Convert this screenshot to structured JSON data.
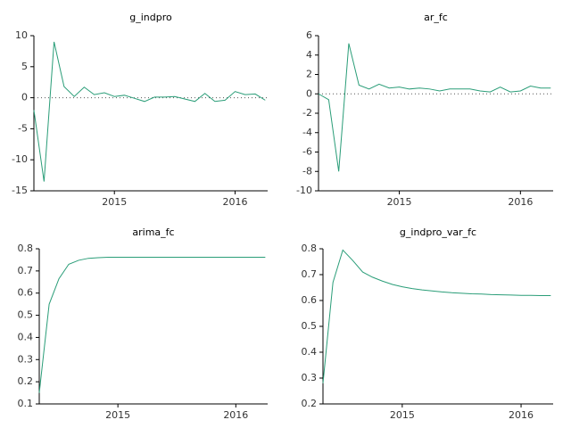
{
  "chart_data": [
    {
      "type": "line",
      "title": "g_indpro",
      "x": [
        2014.333,
        2014.417,
        2014.5,
        2014.583,
        2014.667,
        2014.75,
        2014.833,
        2014.917,
        2015.0,
        2015.083,
        2015.167,
        2015.25,
        2015.333,
        2015.417,
        2015.5,
        2015.583,
        2015.667,
        2015.75,
        2015.833,
        2015.917,
        2016.0,
        2016.083,
        2016.167,
        2016.25
      ],
      "series": [
        {
          "name": "g_indpro",
          "color": "#2a9d78",
          "values": [
            -2,
            -13.5,
            9,
            1.8,
            0.2,
            1.7,
            0.5,
            0.8,
            0.2,
            0.4,
            -0.1,
            -0.6,
            0.1,
            0.1,
            0.2,
            -0.2,
            -0.6,
            0.7,
            -0.6,
            -0.4,
            1.0,
            0.5,
            0.6,
            -0.4
          ]
        }
      ],
      "xlim": [
        2014.333,
        2016.27
      ],
      "xticks": [
        2015,
        2016
      ],
      "ylim": [
        -15,
        10
      ],
      "yticks": [
        -15,
        -10,
        -5,
        0,
        5,
        10
      ],
      "zero_line": true
    },
    {
      "type": "line",
      "title": "ar_fc",
      "x": [
        2014.333,
        2014.417,
        2014.5,
        2014.583,
        2014.667,
        2014.75,
        2014.833,
        2014.917,
        2015.0,
        2015.083,
        2015.167,
        2015.25,
        2015.333,
        2015.417,
        2015.5,
        2015.583,
        2015.667,
        2015.75,
        2015.833,
        2015.917,
        2016.0,
        2016.083,
        2016.167,
        2016.25
      ],
      "series": [
        {
          "name": "ar_fc",
          "color": "#2a9d78",
          "values": [
            0,
            -0.6,
            -8,
            5.2,
            0.9,
            0.5,
            1.0,
            0.6,
            0.7,
            0.5,
            0.6,
            0.5,
            0.3,
            0.5,
            0.5,
            0.5,
            0.3,
            0.2,
            0.7,
            0.2,
            0.3,
            0.8,
            0.6,
            0.6
          ]
        }
      ],
      "xlim": [
        2014.333,
        2016.27
      ],
      "xticks": [
        2015,
        2016
      ],
      "ylim": [
        -10,
        6
      ],
      "yticks": [
        -10,
        -8,
        -6,
        -4,
        -2,
        0,
        2,
        4,
        6
      ],
      "zero_line": true
    },
    {
      "type": "line",
      "title": "arima_fc",
      "x": [
        2014.333,
        2014.417,
        2014.5,
        2014.583,
        2014.667,
        2014.75,
        2014.833,
        2014.917,
        2015.0,
        2015.083,
        2015.167,
        2015.25,
        2015.333,
        2015.417,
        2015.5,
        2015.583,
        2015.667,
        2015.75,
        2015.833,
        2015.917,
        2016.0,
        2016.083,
        2016.167,
        2016.25
      ],
      "series": [
        {
          "name": "arima_fc",
          "color": "#2a9d78",
          "values": [
            0.15,
            0.55,
            0.665,
            0.73,
            0.748,
            0.757,
            0.76,
            0.762,
            0.762,
            0.762,
            0.762,
            0.762,
            0.762,
            0.762,
            0.762,
            0.762,
            0.762,
            0.762,
            0.762,
            0.762,
            0.762,
            0.762,
            0.762,
            0.762
          ]
        }
      ],
      "xlim": [
        2014.333,
        2016.27
      ],
      "xticks": [
        2015,
        2016
      ],
      "ylim": [
        0.1,
        0.8
      ],
      "yticks": [
        0.1,
        0.2,
        0.3,
        0.4,
        0.5,
        0.6,
        0.7,
        0.8
      ],
      "zero_line": false
    },
    {
      "type": "line",
      "title": "g_indpro_var_fc",
      "x": [
        2014.333,
        2014.417,
        2014.5,
        2014.583,
        2014.667,
        2014.75,
        2014.833,
        2014.917,
        2015.0,
        2015.083,
        2015.167,
        2015.25,
        2015.333,
        2015.417,
        2015.5,
        2015.583,
        2015.667,
        2015.75,
        2015.833,
        2015.917,
        2016.0,
        2016.083,
        2016.167,
        2016.25
      ],
      "series": [
        {
          "name": "g_indpro_var_fc",
          "color": "#2a9d78",
          "values": [
            0.28,
            0.67,
            0.795,
            0.755,
            0.71,
            0.69,
            0.675,
            0.662,
            0.653,
            0.646,
            0.641,
            0.637,
            0.633,
            0.63,
            0.628,
            0.626,
            0.625,
            0.623,
            0.622,
            0.621,
            0.62,
            0.62,
            0.619,
            0.619
          ]
        }
      ],
      "xlim": [
        2014.333,
        2016.27
      ],
      "xticks": [
        2015,
        2016
      ],
      "ylim": [
        0.2,
        0.8
      ],
      "yticks": [
        0.2,
        0.3,
        0.4,
        0.5,
        0.6,
        0.7,
        0.8
      ],
      "zero_line": false
    }
  ]
}
